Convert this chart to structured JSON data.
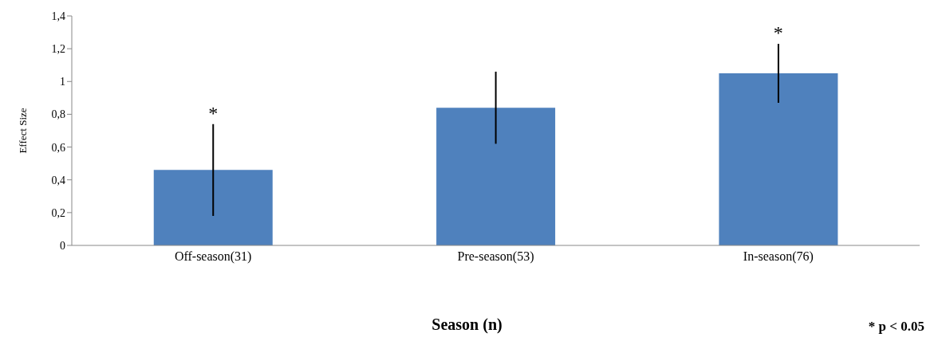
{
  "chart_data": {
    "type": "bar",
    "xlabel": "Season (n)",
    "ylabel": "Effect Size",
    "categories": [
      "Off-season(31)",
      "Pre-season(53)",
      "In-season(76)"
    ],
    "values": [
      0.46,
      0.84,
      1.05
    ],
    "errors": [
      0.28,
      0.22,
      0.18
    ],
    "color": "#4f81bd",
    "ylim": [
      0,
      1.4
    ],
    "yticks": [
      {
        "value": 0,
        "label": "0"
      },
      {
        "value": 0.2,
        "label": "0,2"
      },
      {
        "value": 0.4,
        "label": "0,4"
      },
      {
        "value": 0.6,
        "label": "0,6"
      },
      {
        "value": 0.8,
        "label": "0,8"
      },
      {
        "value": 1,
        "label": "1"
      },
      {
        "value": 1.2,
        "label": "1,2"
      },
      {
        "value": 1.4,
        "label": "1,4"
      }
    ],
    "grid": false,
    "legend": false,
    "annotations": [
      {
        "text": "*",
        "x": "Off-season(31)",
        "y": 0.74
      },
      {
        "text": "*",
        "x": "In-season(76)",
        "y": 1.23
      },
      "* p < 0.05"
    ]
  }
}
